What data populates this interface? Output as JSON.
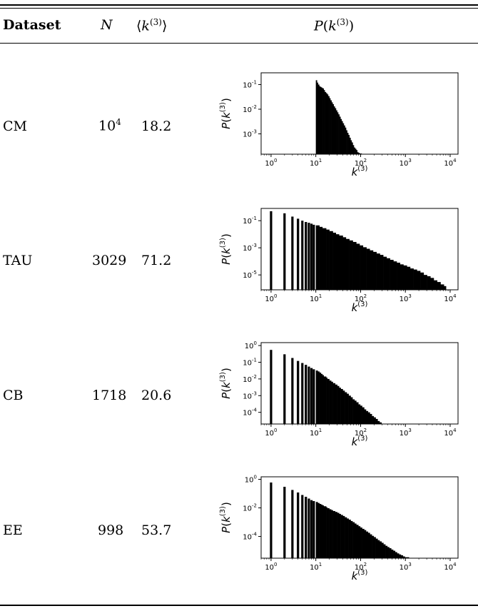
{
  "table": {
    "headers": {
      "dataset": "Dataset",
      "n": "N",
      "mean_k": "⟨k(3)⟩",
      "dist": "P(k(3))"
    },
    "rows": [
      {
        "dataset": "CM",
        "n": "10^4",
        "mean_k": "18.2"
      },
      {
        "dataset": "TAU",
        "n": "3029",
        "mean_k": "71.2"
      },
      {
        "dataset": "CB",
        "n": "1718",
        "mean_k": "20.6"
      },
      {
        "dataset": "EE",
        "n": "998",
        "mean_k": "53.7"
      }
    ]
  },
  "chart_data": [
    {
      "type": "bar",
      "title": "",
      "xlabel": "k(3)",
      "ylabel": "P(k(3))",
      "xscale": "log",
      "yscale": "log",
      "xlim": [
        0.6,
        15000
      ],
      "ylim": [
        0.00015,
        0.3
      ],
      "xticks": [
        "10^0",
        "10^1",
        "10^2",
        "10^3",
        "10^4"
      ],
      "yticks": [
        "10^-1",
        "10^-2",
        "10^-3"
      ],
      "bins": [
        [
          10,
          0.15
        ],
        [
          10.6,
          0.12
        ],
        [
          11.2,
          0.1
        ],
        [
          11.9,
          0.085
        ],
        [
          12.6,
          0.08
        ],
        [
          13.3,
          0.075
        ],
        [
          14.1,
          0.07
        ],
        [
          15,
          0.06
        ],
        [
          15.8,
          0.05
        ],
        [
          16.8,
          0.045
        ],
        [
          17.8,
          0.04
        ],
        [
          18.8,
          0.034
        ],
        [
          20,
          0.028
        ],
        [
          21.1,
          0.023
        ],
        [
          22.4,
          0.019
        ],
        [
          23.7,
          0.016
        ],
        [
          25.1,
          0.013
        ],
        [
          26.6,
          0.011
        ],
        [
          28.2,
          0.009
        ],
        [
          29.9,
          0.0075
        ],
        [
          31.6,
          0.0062
        ],
        [
          33.5,
          0.005
        ],
        [
          35.5,
          0.004
        ],
        [
          37.6,
          0.0033
        ],
        [
          39.8,
          0.0027
        ],
        [
          42.2,
          0.0022
        ],
        [
          44.7,
          0.0018
        ],
        [
          47.3,
          0.0014
        ],
        [
          50.1,
          0.0011
        ],
        [
          53.1,
          0.0009
        ],
        [
          56.2,
          0.0007
        ],
        [
          59.6,
          0.00055
        ],
        [
          63.1,
          0.00045
        ],
        [
          66.8,
          0.00035
        ],
        [
          70.8,
          0.00028
        ],
        [
          75,
          0.00025
        ],
        [
          79.4,
          0.00022
        ],
        [
          84.1,
          0.00018
        ],
        [
          89.1,
          0.00017
        ],
        [
          94.4,
          0.00016
        ]
      ]
    },
    {
      "type": "bar",
      "title": "",
      "xlabel": "k(3)",
      "ylabel": "P(k(3))",
      "xscale": "log",
      "yscale": "log",
      "xlim": [
        0.6,
        15000
      ],
      "ylim": [
        8e-07,
        0.8
      ],
      "xticks": [
        "10^0",
        "10^1",
        "10^2",
        "10^3",
        "10^4"
      ],
      "yticks": [
        "10^-1",
        "10^-3",
        "10^-5"
      ],
      "bins": [
        [
          1,
          0.5
        ],
        [
          2,
          0.35
        ],
        [
          3,
          0.2
        ],
        [
          4,
          0.14
        ],
        [
          5,
          0.1
        ],
        [
          6,
          0.08
        ],
        [
          7,
          0.07
        ],
        [
          8,
          0.06
        ],
        [
          9,
          0.05
        ],
        [
          10,
          0.045
        ],
        [
          12,
          0.035
        ],
        [
          14,
          0.028
        ],
        [
          17,
          0.022
        ],
        [
          20,
          0.017
        ],
        [
          24,
          0.013
        ],
        [
          28,
          0.01
        ],
        [
          33,
          0.008
        ],
        [
          40,
          0.006
        ],
        [
          47,
          0.0045
        ],
        [
          56,
          0.0035
        ],
        [
          67,
          0.0027
        ],
        [
          80,
          0.002
        ],
        [
          95,
          0.0015
        ],
        [
          113,
          0.0011
        ],
        [
          135,
          0.00085
        ],
        [
          160,
          0.00065
        ],
        [
          190,
          0.0005
        ],
        [
          226,
          0.00038
        ],
        [
          270,
          0.0003
        ],
        [
          320,
          0.00022
        ],
        [
          380,
          0.00017
        ],
        [
          453,
          0.00013
        ],
        [
          540,
          0.0001
        ],
        [
          640,
          8e-05
        ],
        [
          760,
          6e-05
        ],
        [
          905,
          5e-05
        ],
        [
          1080,
          4e-05
        ],
        [
          1280,
          3e-05
        ],
        [
          1520,
          2.5e-05
        ],
        [
          1810,
          2e-05
        ],
        [
          2150,
          1.5e-05
        ],
        [
          2560,
          1e-05
        ],
        [
          3050,
          8e-06
        ],
        [
          3620,
          6e-06
        ],
        [
          4300,
          4e-06
        ],
        [
          5120,
          3e-06
        ],
        [
          6100,
          2e-06
        ],
        [
          7240,
          1.5e-06
        ]
      ]
    },
    {
      "type": "bar",
      "title": "",
      "xlabel": "k(3)",
      "ylabel": "P(k(3))",
      "xscale": "log",
      "yscale": "log",
      "xlim": [
        0.6,
        15000
      ],
      "ylim": [
        2e-05,
        1.5
      ],
      "xticks": [
        "10^0",
        "10^1",
        "10^2",
        "10^3",
        "10^4"
      ],
      "yticks": [
        "10^0",
        "10^-1",
        "10^-2",
        "10^-3",
        "10^-4"
      ],
      "bins": [
        [
          1,
          0.55
        ],
        [
          2,
          0.3
        ],
        [
          3,
          0.18
        ],
        [
          4,
          0.12
        ],
        [
          5,
          0.09
        ],
        [
          6,
          0.07
        ],
        [
          7,
          0.055
        ],
        [
          8,
          0.045
        ],
        [
          9,
          0.038
        ],
        [
          10,
          0.032
        ],
        [
          11,
          0.028
        ],
        [
          12,
          0.024
        ],
        [
          13,
          0.02
        ],
        [
          14,
          0.017
        ],
        [
          15,
          0.014
        ],
        [
          17,
          0.012
        ],
        [
          18,
          0.01
        ],
        [
          20,
          0.008
        ],
        [
          22,
          0.0068
        ],
        [
          24,
          0.0056
        ],
        [
          27,
          0.0046
        ],
        [
          30,
          0.0038
        ],
        [
          33,
          0.003
        ],
        [
          36,
          0.0025
        ],
        [
          40,
          0.002
        ],
        [
          44,
          0.0016
        ],
        [
          49,
          0.0013
        ],
        [
          54,
          0.001
        ],
        [
          60,
          0.0008
        ],
        [
          66,
          0.0006
        ],
        [
          73,
          0.0005
        ],
        [
          80,
          0.0004
        ],
        [
          89,
          0.0003
        ],
        [
          98,
          0.00025
        ],
        [
          108,
          0.0002
        ],
        [
          120,
          0.00015
        ],
        [
          132,
          0.00012
        ],
        [
          146,
          0.0001
        ],
        [
          161,
          8e-05
        ],
        [
          178,
          6e-05
        ],
        [
          196,
          5e-05
        ],
        [
          217,
          4e-05
        ],
        [
          240,
          3e-05
        ],
        [
          265,
          2.5e-05
        ],
        [
          293,
          2e-05
        ]
      ]
    },
    {
      "type": "bar",
      "title": "",
      "xlabel": "k(3)",
      "ylabel": "P(k(3))",
      "xscale": "log",
      "yscale": "log",
      "xlim": [
        0.6,
        15000
      ],
      "ylim": [
        3e-06,
        1.5
      ],
      "xticks": [
        "10^0",
        "10^1",
        "10^2",
        "10^3",
        "10^4"
      ],
      "yticks": [
        "10^0",
        "10^-2",
        "10^-4"
      ],
      "bins": [
        [
          1,
          0.6
        ],
        [
          2,
          0.3
        ],
        [
          3,
          0.18
        ],
        [
          4,
          0.12
        ],
        [
          5,
          0.08
        ],
        [
          6,
          0.06
        ],
        [
          7,
          0.045
        ],
        [
          8,
          0.035
        ],
        [
          9,
          0.03
        ],
        [
          10,
          0.026
        ],
        [
          11,
          0.022
        ],
        [
          12,
          0.019
        ],
        [
          13,
          0.017
        ],
        [
          14,
          0.015
        ],
        [
          15,
          0.013
        ],
        [
          17,
          0.011
        ],
        [
          18,
          0.0095
        ],
        [
          20,
          0.008
        ],
        [
          22,
          0.007
        ],
        [
          24,
          0.006
        ],
        [
          27,
          0.0052
        ],
        [
          30,
          0.0045
        ],
        [
          33,
          0.0038
        ],
        [
          36,
          0.0032
        ],
        [
          40,
          0.0027
        ],
        [
          44,
          0.0022
        ],
        [
          49,
          0.0018
        ],
        [
          54,
          0.0015
        ],
        [
          60,
          0.0012
        ],
        [
          66,
          0.001
        ],
        [
          73,
          0.0008
        ],
        [
          80,
          0.00065
        ],
        [
          89,
          0.00052
        ],
        [
          98,
          0.00042
        ],
        [
          108,
          0.00034
        ],
        [
          120,
          0.00028
        ],
        [
          132,
          0.00022
        ],
        [
          146,
          0.00018
        ],
        [
          161,
          0.00014
        ],
        [
          178,
          0.00011
        ],
        [
          196,
          9e-05
        ],
        [
          217,
          7e-05
        ],
        [
          240,
          5.5e-05
        ],
        [
          265,
          4.5e-05
        ],
        [
          293,
          3.6e-05
        ],
        [
          323,
          2.8e-05
        ],
        [
          357,
          2.2e-05
        ],
        [
          395,
          1.8e-05
        ],
        [
          436,
          1.5e-05
        ],
        [
          482,
          1.2e-05
        ],
        [
          533,
          1e-05
        ],
        [
          589,
          8e-06
        ],
        [
          650,
          6.5e-06
        ],
        [
          720,
          5.5e-06
        ],
        [
          795,
          4.8e-06
        ],
        [
          880,
          4e-06
        ],
        [
          970,
          3.5e-06
        ],
        [
          1200,
          3e-06
        ],
        [
          1500,
          3e-06
        ]
      ]
    }
  ]
}
